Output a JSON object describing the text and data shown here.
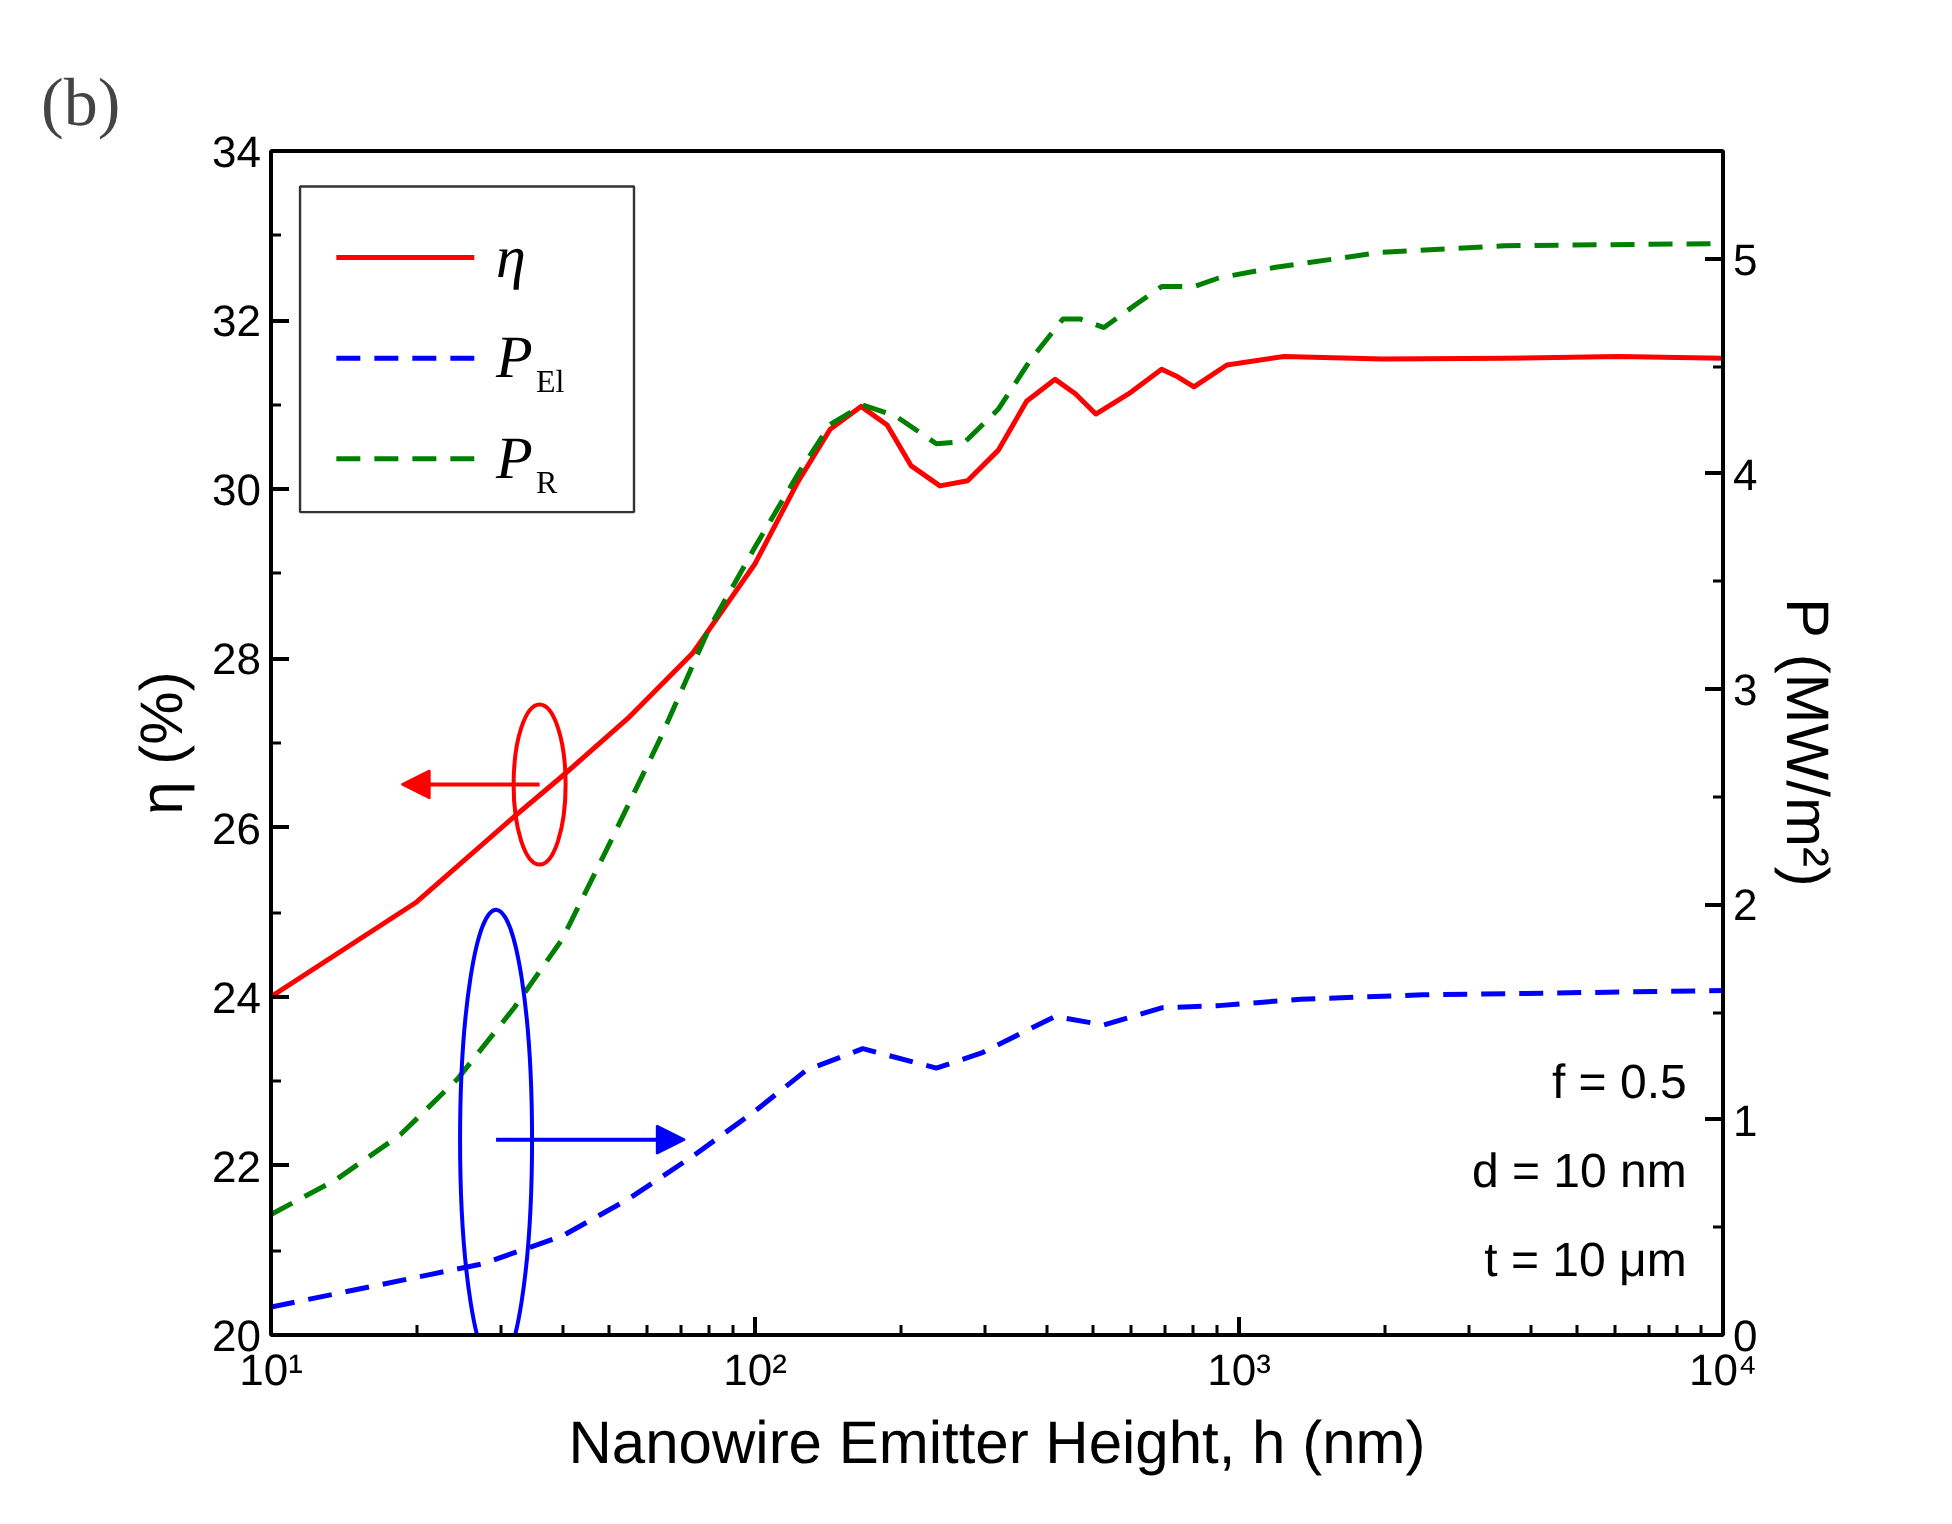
{
  "chart_data": {
    "type": "line",
    "title": "(b)",
    "xlabel": "Nanowire Emitter Height, h (nm)",
    "ylabel": "η (%)",
    "y2label": "P (MW/m²)",
    "log": "x",
    "xlim": [
      10,
      10000
    ],
    "xticks": [
      {
        "value": 10,
        "label": "10¹"
      },
      {
        "value": 100,
        "label": "10²"
      },
      {
        "value": 1000,
        "label": "10³"
      },
      {
        "value": 10000,
        "label": "10⁴"
      }
    ],
    "ylim": [
      20,
      34
    ],
    "yticks": [
      20,
      22,
      24,
      26,
      28,
      30,
      32,
      34
    ],
    "y2lim": [
      0,
      5.5
    ],
    "y2ticks": [
      0,
      1,
      2,
      3,
      4,
      5
    ],
    "grid": false,
    "legend": "top left",
    "series": [
      {
        "name": "η",
        "color": "#ff0000",
        "line_style": "solid",
        "x": [
          10,
          20,
          31.8,
          40,
          54.6,
          74.3,
          100,
          122.7,
          143,
          165.6,
          187.5,
          210,
          241,
          275,
          318,
          364,
          417,
          459,
          506,
          592,
          692,
          747,
          807,
          944,
          1239,
          1977,
          3540,
          6095,
          10000
        ],
        "values": [
          24.0,
          25.12,
          26.13,
          26.61,
          27.29,
          28.06,
          29.12,
          30.09,
          30.71,
          30.98,
          30.76,
          30.28,
          30.04,
          30.1,
          30.46,
          31.04,
          31.3,
          31.13,
          30.89,
          31.13,
          31.42,
          31.33,
          31.21,
          31.47,
          31.57,
          31.54,
          31.55,
          31.57,
          31.55
        ]
      },
      {
        "name": "P$_{El}$",
        "color": "#0000ff",
        "line_style": "dashed",
        "axis": "y2",
        "x": [
          10,
          16.5,
          27.3,
          40,
          54.6,
          74.3,
          100,
          127.6,
          167,
          237,
          294,
          417,
          526,
          692,
          908,
          1339,
          2399,
          10000
        ],
        "values": [
          0.13,
          0.23,
          0.33,
          0.46,
          0.63,
          0.83,
          1.04,
          1.23,
          1.33,
          1.24,
          1.31,
          1.48,
          1.44,
          1.52,
          1.53,
          1.56,
          1.58,
          1.6
        ]
      },
      {
        "name": "P$_{R}$",
        "color": "#008000",
        "line_style": "dashed",
        "axis": "y2",
        "x": [
          10,
          13.6,
          18.5,
          24.3,
          31.8,
          40,
          50.5,
          63.7,
          80.3,
          100,
          122.7,
          143,
          167,
          195,
          237,
          272,
          318,
          371,
          433,
          469,
          526,
          615,
          692,
          807,
          908,
          1191,
          1977,
          3540,
          10000
        ],
        "values": [
          0.56,
          0.72,
          0.93,
          1.19,
          1.52,
          1.84,
          2.3,
          2.77,
          3.28,
          3.66,
          4.0,
          4.23,
          4.32,
          4.27,
          4.14,
          4.15,
          4.3,
          4.53,
          4.72,
          4.72,
          4.68,
          4.79,
          4.87,
          4.87,
          4.91,
          4.96,
          5.03,
          5.06,
          5.07
        ]
      }
    ],
    "annotations": [
      "f = 0.5",
      "d = 10 nm",
      "t = 10 μm"
    ]
  }
}
